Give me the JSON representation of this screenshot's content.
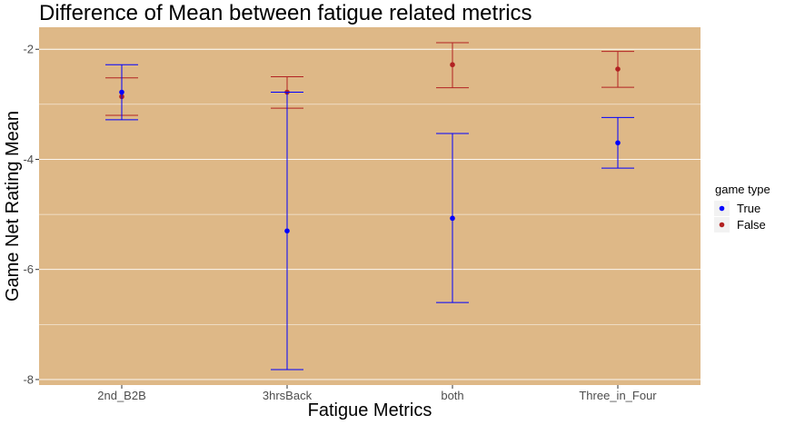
{
  "chart_data": {
    "type": "errorbar",
    "title": "Difference of Mean between fatigue related metrics",
    "xlabel": "Fatigue Metrics",
    "ylabel": "Game Net Rating Mean",
    "categories": [
      "2nd_B2B",
      "3hrsBack",
      "both",
      "Three_in_Four"
    ],
    "ylim": [
      -8.1,
      -1.6
    ],
    "yticks": [
      -8,
      -6,
      -4,
      -2
    ],
    "ytick_labels": [
      "-8",
      "-6",
      "-4",
      "-2"
    ],
    "panel_background": "#deb887",
    "grid": true,
    "grid_color": "#ffffff",
    "legend": {
      "title": "game type",
      "position": "right"
    },
    "series": [
      {
        "name": "True",
        "color": "#0000ff",
        "points": [
          {
            "category": "2nd_B2B",
            "mean": -2.78,
            "lower": -3.28,
            "upper": -2.28
          },
          {
            "category": "3hrsBack",
            "mean": -5.3,
            "lower": -7.82,
            "upper": -2.78
          },
          {
            "category": "both",
            "mean": -5.07,
            "lower": -6.6,
            "upper": -3.53
          },
          {
            "category": "Three_in_Four",
            "mean": -3.7,
            "lower": -4.16,
            "upper": -3.24
          }
        ]
      },
      {
        "name": "False",
        "color": "#b22222",
        "points": [
          {
            "category": "2nd_B2B",
            "mean": -2.86,
            "lower": -3.2,
            "upper": -2.52
          },
          {
            "category": "3hrsBack",
            "mean": -2.78,
            "lower": -3.07,
            "upper": -2.5
          },
          {
            "category": "both",
            "mean": -2.28,
            "lower": -2.7,
            "upper": -1.88
          },
          {
            "category": "Three_in_Four",
            "mean": -2.36,
            "lower": -2.69,
            "upper": -2.04
          }
        ]
      }
    ]
  }
}
